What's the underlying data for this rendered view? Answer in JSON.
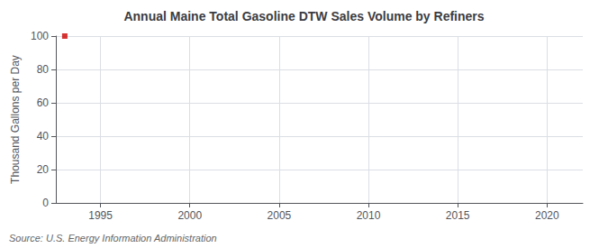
{
  "chart_data": {
    "type": "scatter",
    "title": "Annual Maine Total Gasoline DTW Sales Volume by Refiners",
    "ylabel": "Thousand Gallons per Day",
    "annotations": [
      "Source: U.S. Energy Information Administration"
    ],
    "x": [
      1993
    ],
    "values": [
      100
    ],
    "color": "#cc0000",
    "marker": "square",
    "xlim": [
      1992.5,
      2022
    ],
    "xticks": [
      1995,
      2000,
      2005,
      2010,
      2015,
      2020
    ],
    "ylim": [
      0,
      100
    ],
    "yticks": [
      0,
      20,
      40,
      60,
      80,
      100
    ],
    "grid": true
  }
}
